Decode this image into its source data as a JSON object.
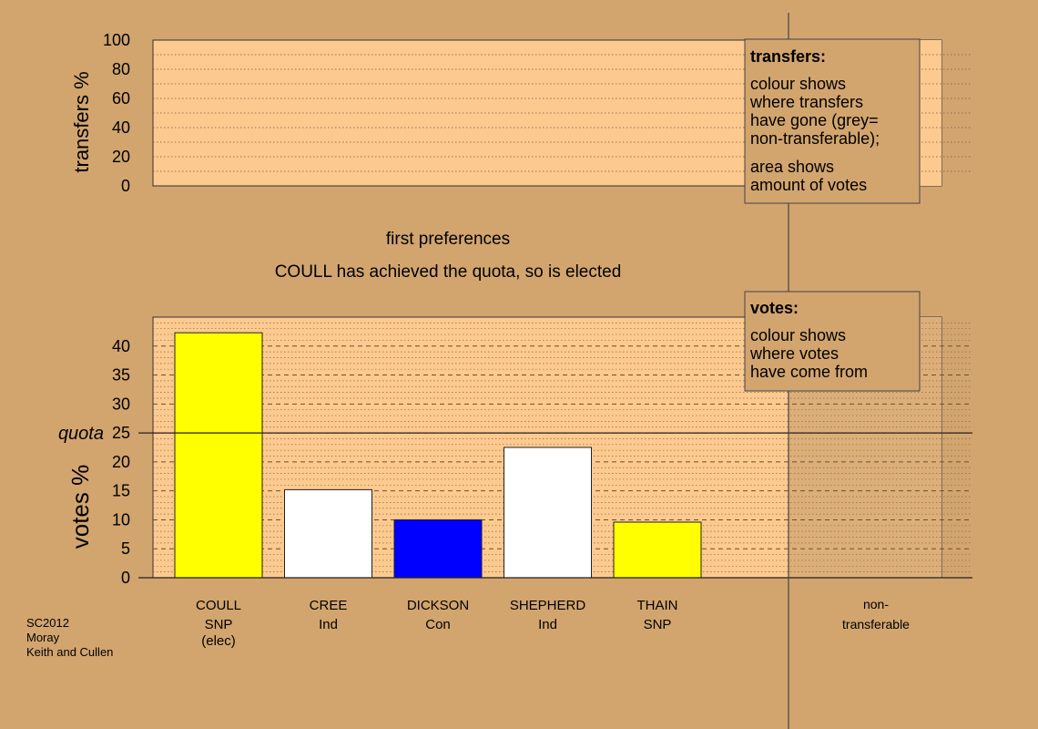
{
  "colors": {
    "background": "#d2a56f",
    "plot_area": "#fcc98f",
    "nontransferable_area": "#dcaf79",
    "snp": "#ffff00",
    "ind": "#ffffff",
    "con": "#0000ff"
  },
  "captions": {
    "stage": "first preferences",
    "status": "COULL has achieved the quota, so is elected"
  },
  "footer": {
    "line1": "SC2012",
    "line2": "Moray",
    "line3": "Keith and Cullen"
  },
  "legend_transfers": {
    "heading": "transfers:",
    "line1": "colour shows",
    "line2": "where transfers",
    "line3": "have gone (grey=",
    "line4": "non-transferable);",
    "line5": "area shows",
    "line6": "amount of votes"
  },
  "legend_votes": {
    "heading": "votes:",
    "line1": "colour shows",
    "line2": "where votes",
    "line3": "have come from"
  },
  "chart_data": [
    {
      "type": "bar",
      "ylabel": "transfers %",
      "ylim": [
        0,
        100
      ],
      "yticks": [
        "0",
        "20",
        "40",
        "60",
        "80",
        "100"
      ],
      "values": []
    },
    {
      "type": "bar",
      "ylabel": "votes %",
      "ylim": [
        0,
        45
      ],
      "yticks": [
        "0",
        "5",
        "10",
        "15",
        "20",
        "25",
        "30",
        "35",
        "40"
      ],
      "quota": 25,
      "quota_label": "quota",
      "categories": [
        {
          "name": "COULL",
          "party": "SNP",
          "note": "(elec)",
          "value": 42.3,
          "color": "#ffff00"
        },
        {
          "name": "CREE",
          "party": "Ind",
          "note": "",
          "value": 15.2,
          "color": "#ffffff"
        },
        {
          "name": "DICKSON",
          "party": "Con",
          "note": "",
          "value": 10.0,
          "color": "#0000ff"
        },
        {
          "name": "SHEPHERD",
          "party": "Ind",
          "note": "",
          "value": 22.5,
          "color": "#ffffff"
        },
        {
          "name": "THAIN",
          "party": "SNP",
          "note": "",
          "value": 9.6,
          "color": "#ffff00"
        }
      ],
      "extra_category": {
        "line1": "non-",
        "line2": "transferable"
      }
    }
  ]
}
